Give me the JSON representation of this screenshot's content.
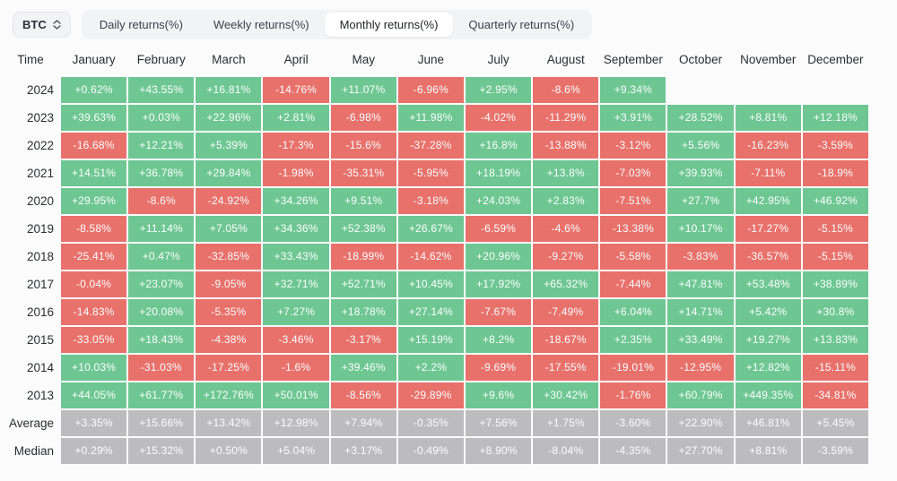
{
  "colors": {
    "positive": "#6ec793",
    "negative": "#e8716b",
    "neutral": "#bcbcbe",
    "cell_text": "#fdfdfd"
  },
  "toolbar": {
    "asset": {
      "value": "BTC"
    },
    "tabs": [
      {
        "id": "daily",
        "label": "Daily returns(%)",
        "active": false
      },
      {
        "id": "weekly",
        "label": "Weekly returns(%)",
        "active": false
      },
      {
        "id": "monthly",
        "label": "Monthly returns(%)",
        "active": true
      },
      {
        "id": "quarterly",
        "label": "Quarterly returns(%)",
        "active": false
      }
    ]
  },
  "chart_data": {
    "type": "heatmap",
    "title": "BTC Monthly returns(%)",
    "columns": [
      "Time",
      "January",
      "February",
      "March",
      "April",
      "May",
      "June",
      "July",
      "August",
      "September",
      "October",
      "November",
      "December"
    ],
    "rows": [
      {
        "label": "2024",
        "neutral": false,
        "values": [
          "+0.62%",
          "+43.55%",
          "+16.81%",
          "-14.76%",
          "+11.07%",
          "-6.96%",
          "+2.95%",
          "-8.6%",
          "+9.34%",
          null,
          null,
          null
        ]
      },
      {
        "label": "2023",
        "neutral": false,
        "values": [
          "+39.63%",
          "+0.03%",
          "+22.96%",
          "+2.81%",
          "-6.98%",
          "+11.98%",
          "-4.02%",
          "-11.29%",
          "+3.91%",
          "+28.52%",
          "+8.81%",
          "+12.18%"
        ]
      },
      {
        "label": "2022",
        "neutral": false,
        "values": [
          "-16.68%",
          "+12.21%",
          "+5.39%",
          "-17.3%",
          "-15.6%",
          "-37.28%",
          "+16.8%",
          "-13.88%",
          "-3.12%",
          "+5.56%",
          "-16.23%",
          "-3.59%"
        ]
      },
      {
        "label": "2021",
        "neutral": false,
        "values": [
          "+14.51%",
          "+36.78%",
          "+29.84%",
          "-1.98%",
          "-35.31%",
          "-5.95%",
          "+18.19%",
          "+13.8%",
          "-7.03%",
          "+39.93%",
          "-7.11%",
          "-18.9%"
        ]
      },
      {
        "label": "2020",
        "neutral": false,
        "values": [
          "+29.95%",
          "-8.6%",
          "-24.92%",
          "+34.26%",
          "+9.51%",
          "-3.18%",
          "+24.03%",
          "+2.83%",
          "-7.51%",
          "+27.7%",
          "+42.95%",
          "+46.92%"
        ]
      },
      {
        "label": "2019",
        "neutral": false,
        "values": [
          "-8.58%",
          "+11.14%",
          "+7.05%",
          "+34.36%",
          "+52.38%",
          "+26.67%",
          "-6.59%",
          "-4.6%",
          "-13.38%",
          "+10.17%",
          "-17.27%",
          "-5.15%"
        ]
      },
      {
        "label": "2018",
        "neutral": false,
        "values": [
          "-25.41%",
          "+0.47%",
          "-32.85%",
          "+33.43%",
          "-18.99%",
          "-14.62%",
          "+20.96%",
          "-9.27%",
          "-5.58%",
          "-3.83%",
          "-36.57%",
          "-5.15%"
        ]
      },
      {
        "label": "2017",
        "neutral": false,
        "values": [
          "-0.04%",
          "+23.07%",
          "-9.05%",
          "+32.71%",
          "+52.71%",
          "+10.45%",
          "+17.92%",
          "+65.32%",
          "-7.44%",
          "+47.81%",
          "+53.48%",
          "+38.89%"
        ]
      },
      {
        "label": "2016",
        "neutral": false,
        "values": [
          "-14.83%",
          "+20.08%",
          "-5.35%",
          "+7.27%",
          "+18.78%",
          "+27.14%",
          "-7.67%",
          "-7.49%",
          "+6.04%",
          "+14.71%",
          "+5.42%",
          "+30.8%"
        ]
      },
      {
        "label": "2015",
        "neutral": false,
        "values": [
          "-33.05%",
          "+18.43%",
          "-4.38%",
          "-3.46%",
          "-3.17%",
          "+15.19%",
          "+8.2%",
          "-18.67%",
          "+2.35%",
          "+33.49%",
          "+19.27%",
          "+13.83%"
        ]
      },
      {
        "label": "2014",
        "neutral": false,
        "values": [
          "+10.03%",
          "-31.03%",
          "-17.25%",
          "-1.6%",
          "+39.46%",
          "+2.2%",
          "-9.69%",
          "-17.55%",
          "-19.01%",
          "-12.95%",
          "+12.82%",
          "-15.11%"
        ]
      },
      {
        "label": "2013",
        "neutral": false,
        "values": [
          "+44.05%",
          "+61.77%",
          "+172.76%",
          "+50.01%",
          "-8.56%",
          "-29.89%",
          "+9.6%",
          "+30.42%",
          "-1.76%",
          "+60.79%",
          "+449.35%",
          "-34.81%"
        ]
      },
      {
        "label": "Average",
        "neutral": true,
        "values": [
          "+3.35%",
          "+15.66%",
          "+13.42%",
          "+12.98%",
          "+7.94%",
          "-0.35%",
          "+7.56%",
          "+1.75%",
          "-3.60%",
          "+22.90%",
          "+46.81%",
          "+5.45%"
        ]
      },
      {
        "label": "Median",
        "neutral": true,
        "values": [
          "+0.29%",
          "+15.32%",
          "+0.50%",
          "+5.04%",
          "+3.17%",
          "-0.49%",
          "+8.90%",
          "-8.04%",
          "-4.35%",
          "+27.70%",
          "+8.81%",
          "-3.59%"
        ]
      }
    ]
  }
}
